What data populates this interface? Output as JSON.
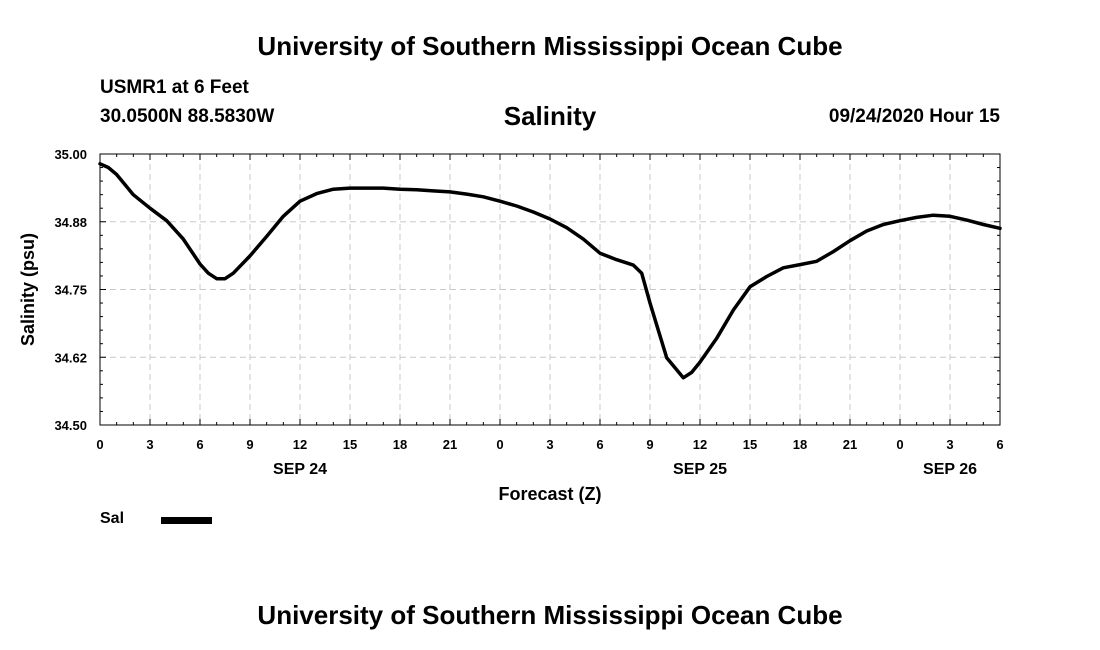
{
  "header": {
    "title": "University of Southern Mississippi Ocean Cube",
    "station": "USMR1 at 6 Feet",
    "location": "30.0500N 88.5830W",
    "variable": "Salinity",
    "datetime": "09/24/2020 Hour 15"
  },
  "footer": {
    "title": "University of Southern Mississippi Ocean Cube"
  },
  "legend": {
    "label": "Sal",
    "color": "#000000"
  },
  "chart_data": {
    "type": "line",
    "title": "Salinity",
    "xlabel": "Forecast (Z)",
    "ylabel": "Salinity (psu)",
    "xlim": [
      0,
      54
    ],
    "ylim": [
      34.5,
      35.0
    ],
    "yticks": [
      34.5,
      34.625,
      34.75,
      34.875,
      35.0
    ],
    "ytick_labels": [
      "34.50",
      "34.62",
      "34.75",
      "34.88",
      "35.00"
    ],
    "xticks": [
      0,
      3,
      6,
      9,
      12,
      15,
      18,
      21,
      24,
      27,
      30,
      33,
      36,
      39,
      42,
      45,
      48,
      51,
      54
    ],
    "xtick_labels": [
      "0",
      "3",
      "6",
      "9",
      "12",
      "15",
      "18",
      "21",
      "0",
      "3",
      "6",
      "9",
      "12",
      "15",
      "18",
      "21",
      "0",
      "3",
      "6"
    ],
    "date_labels": [
      {
        "x": 12,
        "label": "SEP 24"
      },
      {
        "x": 36,
        "label": "SEP 25"
      },
      {
        "x": 51,
        "label": "SEP 26"
      }
    ],
    "grid": true,
    "series": [
      {
        "name": "Sal",
        "color": "#000000",
        "x": [
          0,
          0.5,
          1,
          2,
          3,
          4,
          5,
          6,
          6.5,
          7,
          7.5,
          8,
          9,
          10,
          11,
          12,
          13,
          14,
          15,
          16,
          17,
          18,
          19,
          20,
          21,
          22,
          23,
          24,
          25,
          26,
          27,
          28,
          29,
          30,
          31,
          32,
          32.5,
          33,
          34,
          35,
          35.5,
          36,
          37,
          38,
          39,
          40,
          41,
          42,
          43,
          44,
          45,
          46,
          47,
          48,
          49,
          50,
          51,
          52,
          53,
          54
        ],
        "y": [
          34.982,
          34.975,
          34.962,
          34.925,
          34.9,
          34.877,
          34.843,
          34.797,
          34.78,
          34.77,
          34.77,
          34.78,
          34.812,
          34.848,
          34.885,
          34.913,
          34.927,
          34.935,
          34.937,
          34.937,
          34.937,
          34.935,
          34.934,
          34.932,
          34.93,
          34.926,
          34.921,
          34.913,
          34.904,
          34.893,
          34.88,
          34.864,
          34.843,
          34.817,
          34.805,
          34.795,
          34.78,
          34.725,
          34.624,
          34.587,
          34.597,
          34.616,
          34.66,
          34.712,
          34.755,
          34.774,
          34.79,
          34.796,
          34.802,
          34.82,
          34.84,
          34.858,
          34.87,
          34.877,
          34.883,
          34.887,
          34.885,
          34.878,
          34.87,
          34.863
        ]
      }
    ]
  }
}
